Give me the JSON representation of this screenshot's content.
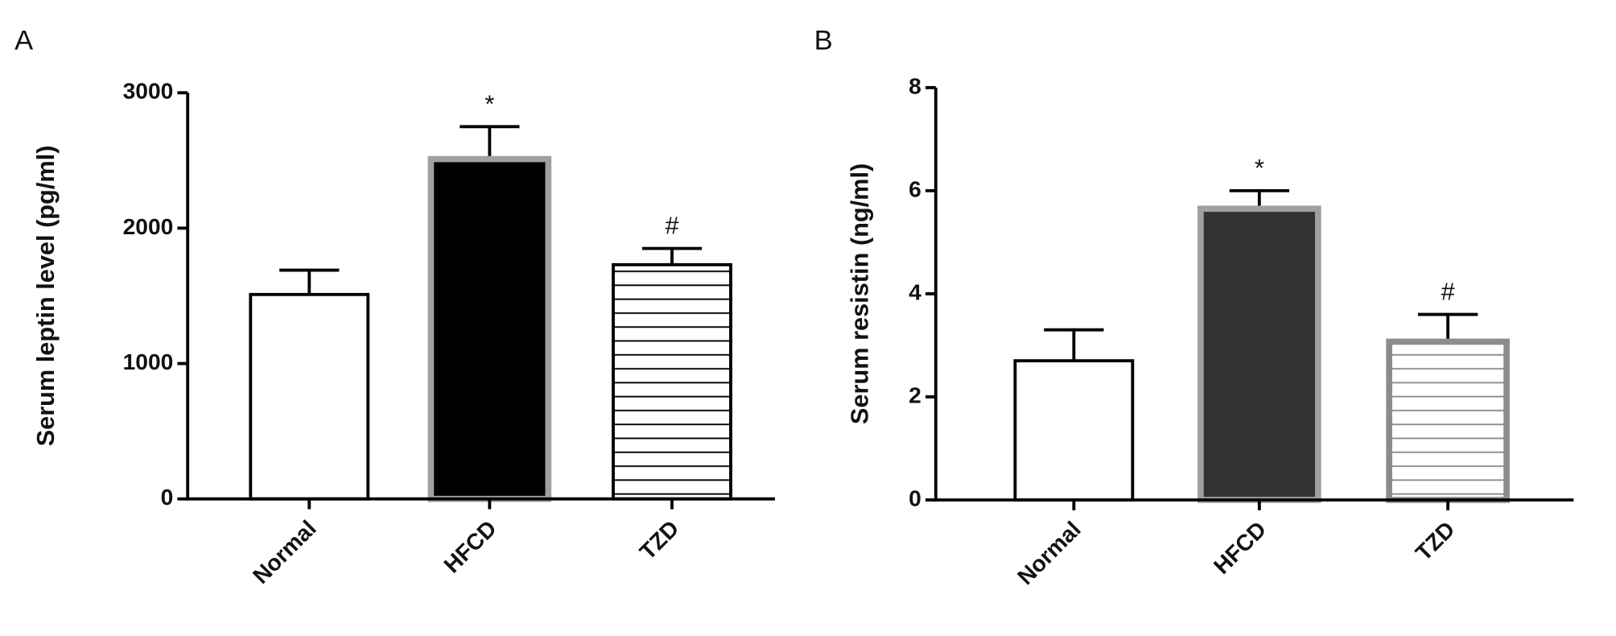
{
  "chart_data": [
    {
      "type": "bar",
      "panel": "A",
      "ylabel": "Serum leptin level (pg/ml)",
      "categories": [
        "Normal",
        "HFCD",
        "TZD"
      ],
      "values": [
        1510,
        2510,
        1730
      ],
      "errors": [
        180,
        240,
        120
      ],
      "colors": [
        "#ffffff",
        "#000000",
        "#ffffff"
      ],
      "edge_colors": [
        "#000000",
        "#a0a0a0",
        "#000000"
      ],
      "hatch": [
        false,
        false,
        true
      ],
      "annotations": [
        {
          "text": "*",
          "category": "HFCD"
        },
        {
          "text": "#",
          "category": "TZD"
        }
      ],
      "ylim": [
        0,
        3000
      ],
      "yticks": [
        0,
        1000,
        2000,
        3000
      ]
    },
    {
      "type": "bar",
      "panel": "B",
      "ylabel": "Serum resistin (ng/ml)",
      "categories": [
        "Normal",
        "HFCD",
        "TZD"
      ],
      "values": [
        2.7,
        5.65,
        3.07
      ],
      "errors": [
        0.6,
        0.35,
        0.53
      ],
      "colors": [
        "#ffffff",
        "#333333",
        "#ffffff"
      ],
      "edge_colors": [
        "#000000",
        "#a0a0a0",
        "#8c8c8c"
      ],
      "hatch": [
        false,
        false,
        true
      ],
      "annotations": [
        {
          "text": "*",
          "category": "HFCD"
        },
        {
          "text": "#",
          "category": "TZD"
        }
      ],
      "ylim": [
        0,
        8
      ],
      "yticks": [
        0,
        2,
        4,
        6,
        8
      ]
    }
  ]
}
